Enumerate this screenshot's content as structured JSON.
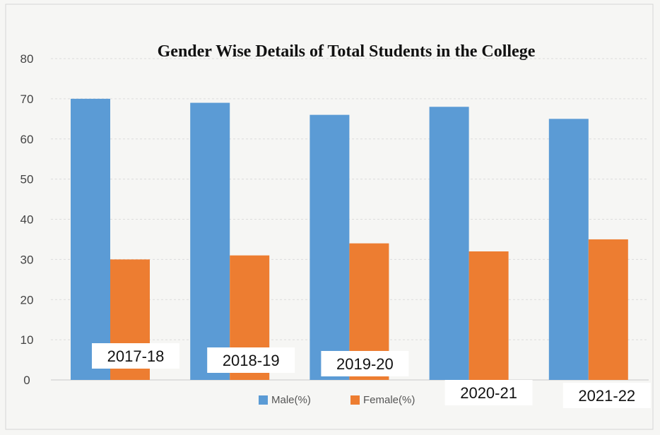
{
  "chart_data": {
    "type": "bar",
    "title": "Gender Wise Details of Total Students in the College",
    "xlabel": "",
    "ylabel": "",
    "ylim": [
      0,
      80
    ],
    "yticks": [
      0,
      10,
      20,
      30,
      40,
      50,
      60,
      70,
      80
    ],
    "grid": true,
    "legend_position": "bottom",
    "categories": [
      "2017-18",
      "2018-19",
      "2019-20",
      "2020-21",
      "2021-22"
    ],
    "series": [
      {
        "name": "Male(%)",
        "color": "#5b9bd5",
        "values": [
          70,
          69,
          66,
          68,
          65
        ]
      },
      {
        "name": "Female(%)",
        "color": "#ed7d31",
        "values": [
          30,
          31,
          34,
          32,
          35
        ]
      }
    ]
  }
}
